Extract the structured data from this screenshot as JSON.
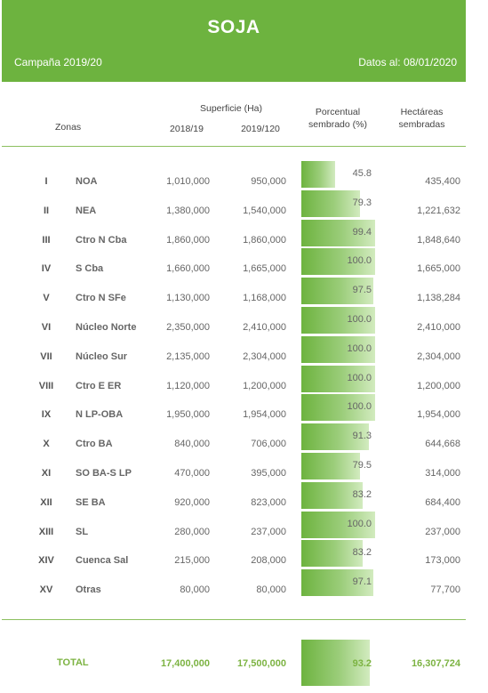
{
  "header": {
    "title": "SOJA",
    "campaign": "Campaña 2019/20",
    "date": "Datos al: 08/01/2020"
  },
  "columns": {
    "zonas": "Zonas",
    "superficie": "Superficie (Ha)",
    "y1": "2018/19",
    "y2": "2019/120",
    "porcentual": "Porcentual",
    "porcentual2": "sembrado (%)",
    "hectareas": "Hectáreas",
    "hectareas2": "sembradas"
  },
  "colors": {
    "accent": "#6db33f",
    "total_text": "#7cb342"
  },
  "rows": [
    {
      "roman": "I",
      "zone": "NOA",
      "s1": "1,010,000",
      "s2": "950,000",
      "pct": "45.8",
      "pct_value": 45.8,
      "hec": "435,400"
    },
    {
      "roman": "II",
      "zone": "NEA",
      "s1": "1,380,000",
      "s2": "1,540,000",
      "pct": "79.3",
      "pct_value": 79.3,
      "hec": "1,221,632"
    },
    {
      "roman": "III",
      "zone": "Ctro N Cba",
      "s1": "1,860,000",
      "s2": "1,860,000",
      "pct": "99.4",
      "pct_value": 99.4,
      "hec": "1,848,640"
    },
    {
      "roman": "IV",
      "zone": "S Cba",
      "s1": "1,660,000",
      "s2": "1,665,000",
      "pct": "100.0",
      "pct_value": 100.0,
      "hec": "1,665,000"
    },
    {
      "roman": "V",
      "zone": "Ctro N SFe",
      "s1": "1,130,000",
      "s2": "1,168,000",
      "pct": "97.5",
      "pct_value": 97.5,
      "hec": "1,138,284"
    },
    {
      "roman": "VI",
      "zone": "Núcleo Norte",
      "s1": "2,350,000",
      "s2": "2,410,000",
      "pct": "100.0",
      "pct_value": 100.0,
      "hec": "2,410,000"
    },
    {
      "roman": "VII",
      "zone": "Núcleo Sur",
      "s1": "2,135,000",
      "s2": "2,304,000",
      "pct": "100.0",
      "pct_value": 100.0,
      "hec": "2,304,000"
    },
    {
      "roman": "VIII",
      "zone": "Ctro E ER",
      "s1": "1,120,000",
      "s2": "1,200,000",
      "pct": "100.0",
      "pct_value": 100.0,
      "hec": "1,200,000"
    },
    {
      "roman": "IX",
      "zone": "N LP-OBA",
      "s1": "1,950,000",
      "s2": "1,954,000",
      "pct": "100.0",
      "pct_value": 100.0,
      "hec": "1,954,000"
    },
    {
      "roman": "X",
      "zone": "Ctro BA",
      "s1": "840,000",
      "s2": "706,000",
      "pct": "91.3",
      "pct_value": 91.3,
      "hec": "644,668"
    },
    {
      "roman": "XI",
      "zone": "SO BA-S LP",
      "s1": "470,000",
      "s2": "395,000",
      "pct": "79.5",
      "pct_value": 79.5,
      "hec": "314,000"
    },
    {
      "roman": "XII",
      "zone": "SE BA",
      "s1": "920,000",
      "s2": "823,000",
      "pct": "83.2",
      "pct_value": 83.2,
      "hec": "684,400"
    },
    {
      "roman": "XIII",
      "zone": "SL",
      "s1": "280,000",
      "s2": "237,000",
      "pct": "100.0",
      "pct_value": 100.0,
      "hec": "237,000"
    },
    {
      "roman": "XIV",
      "zone": "Cuenca Sal",
      "s1": "215,000",
      "s2": "208,000",
      "pct": "83.2",
      "pct_value": 83.2,
      "hec": "173,000"
    },
    {
      "roman": "XV",
      "zone": "Otras",
      "s1": "80,000",
      "s2": "80,000",
      "pct": "97.1",
      "pct_value": 97.1,
      "hec": "77,700"
    }
  ],
  "total": {
    "label": "TOTAL",
    "s1": "17,400,000",
    "s2": "17,500,000",
    "pct": "93.2",
    "pct_value": 93.2,
    "hec": "16,307,724"
  }
}
